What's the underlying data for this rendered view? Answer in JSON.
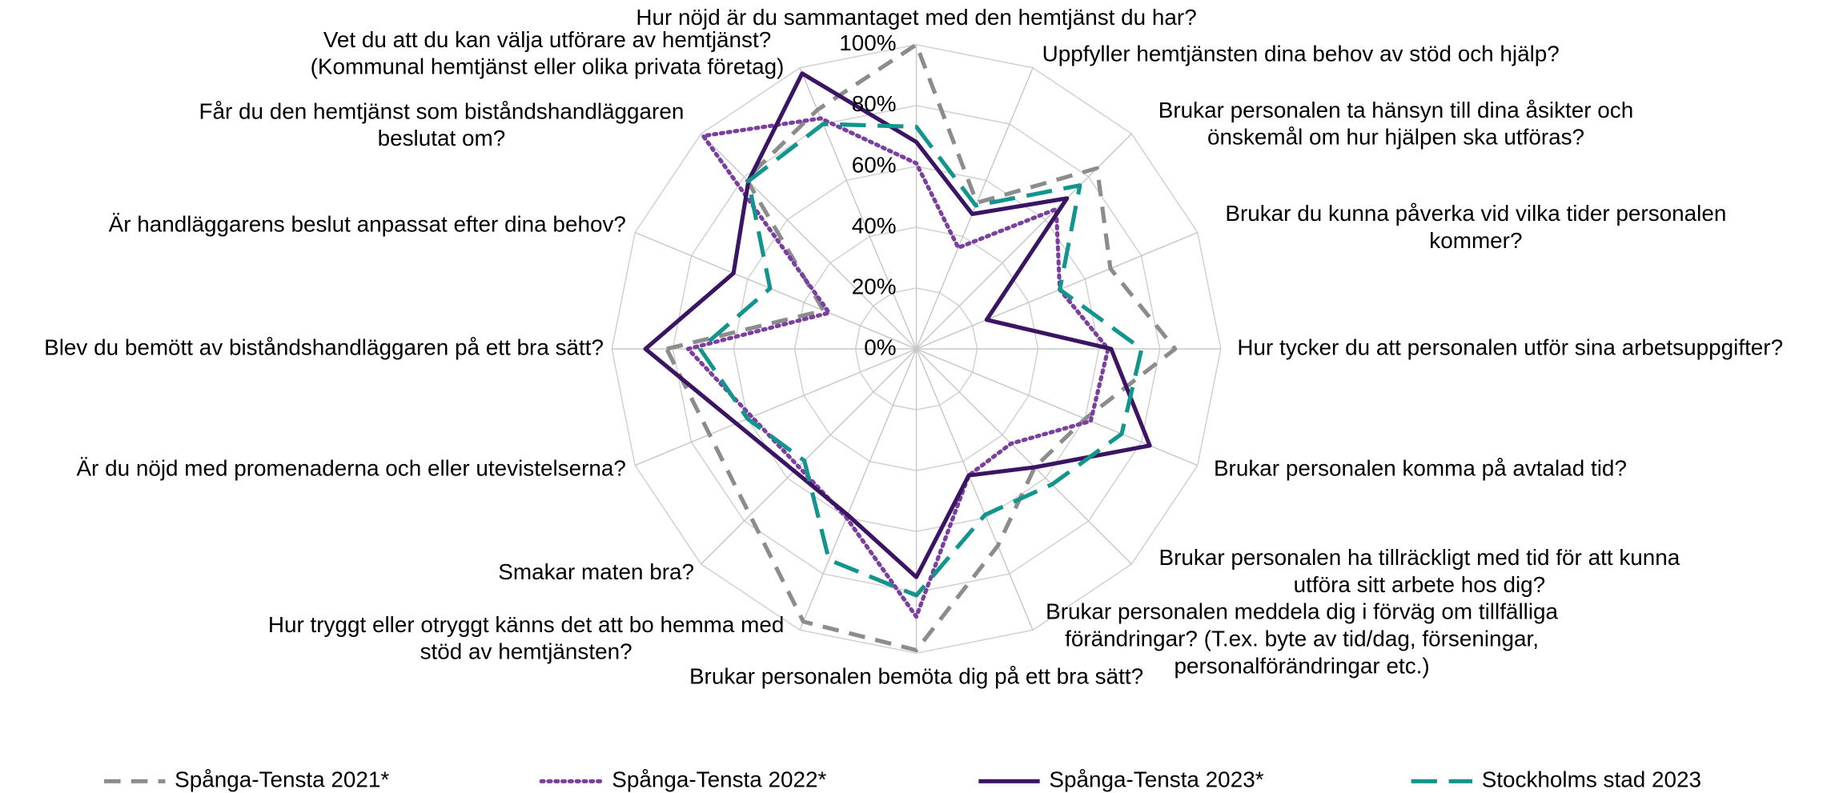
{
  "chart_data": {
    "type": "radar",
    "categories": [
      [
        "Hur nöjd är du sammantaget med den hemtjänst du har?"
      ],
      [
        "Uppfyller hemtjänsten dina behov av stöd och hjälp?"
      ],
      [
        "Brukar personalen ta hänsyn till dina åsikter och",
        "önskemål om hur hjälpen ska utföras?"
      ],
      [
        "Brukar du kunna påverka vid vilka tider personalen",
        "kommer?"
      ],
      [
        "Hur tycker du att personalen utför sina  arbetsuppgifter?"
      ],
      [
        "Brukar personalen komma på avtalad tid?"
      ],
      [
        "Brukar personalen ha tillräckligt med tid för att kunna",
        "utföra sitt arbete hos dig?"
      ],
      [
        "Brukar personalen meddela dig i förväg om tillfälliga",
        "förändringar? (T.ex. byte av tid/dag, förseningar,",
        "personalförändringar etc.)"
      ],
      [
        "Brukar personalen bemöta dig på ett bra sätt?"
      ],
      [
        "Hur tryggt eller otryggt känns det att bo hemma med",
        "stöd av hemtjänsten?"
      ],
      [
        "Smakar maten bra?"
      ],
      [
        "Är du nöjd med promenaderna och eller utevistelserna?"
      ],
      [
        "Blev du bemött av biståndshandläggaren på ett bra sätt?"
      ],
      [
        "Är handläggarens beslut anpassat efter dina behov?"
      ],
      [
        "Får du den hemtjänst som biståndshandläggaren",
        "beslutat om?"
      ],
      [
        "Vet du att du kan välja utförare av hemtjänst?",
        "(Kommunal hemtjänst eller olika privata företag)"
      ]
    ],
    "series": [
      {
        "name": "Spånga-Tensta 2021*",
        "color": "#8c8c8c",
        "dash": "dashed",
        "values": [
          100,
          52,
          84,
          69,
          85,
          60,
          55,
          70,
          99,
          97,
          null,
          null,
          82,
          33,
          79,
          85
        ]
      },
      {
        "name": "Spånga-Tensta 2022*",
        "color": "#7b3f9e",
        "dash": "dotted",
        "values": [
          61,
          36,
          65,
          51,
          63,
          62,
          44,
          45,
          88,
          60,
          null,
          null,
          75,
          31,
          99,
          82
        ]
      },
      {
        "name": "Spånga-Tensta 2023*",
        "color": "#3b1464",
        "dash": "solid",
        "values": [
          68,
          48,
          70,
          25,
          64,
          83,
          55,
          45,
          75,
          59,
          null,
          null,
          89,
          65,
          78,
          98
        ]
      },
      {
        "name": "Stockholms stad 2023",
        "color": "#13958d",
        "dash": "longdash",
        "values": [
          73,
          51,
          76,
          51,
          74,
          73,
          63,
          59,
          81,
          75,
          52,
          60,
          71,
          52,
          78,
          80
        ]
      }
    ],
    "ylim": [
      0,
      100
    ],
    "yticks": [
      {
        "value": 0,
        "label": "0%"
      },
      {
        "value": 20,
        "label": "20%"
      },
      {
        "value": 40,
        "label": "40%"
      },
      {
        "value": 60,
        "label": "60%"
      },
      {
        "value": 80,
        "label": "80%"
      },
      {
        "value": 100,
        "label": "100%"
      }
    ],
    "grid": true,
    "legend": "bottom"
  }
}
